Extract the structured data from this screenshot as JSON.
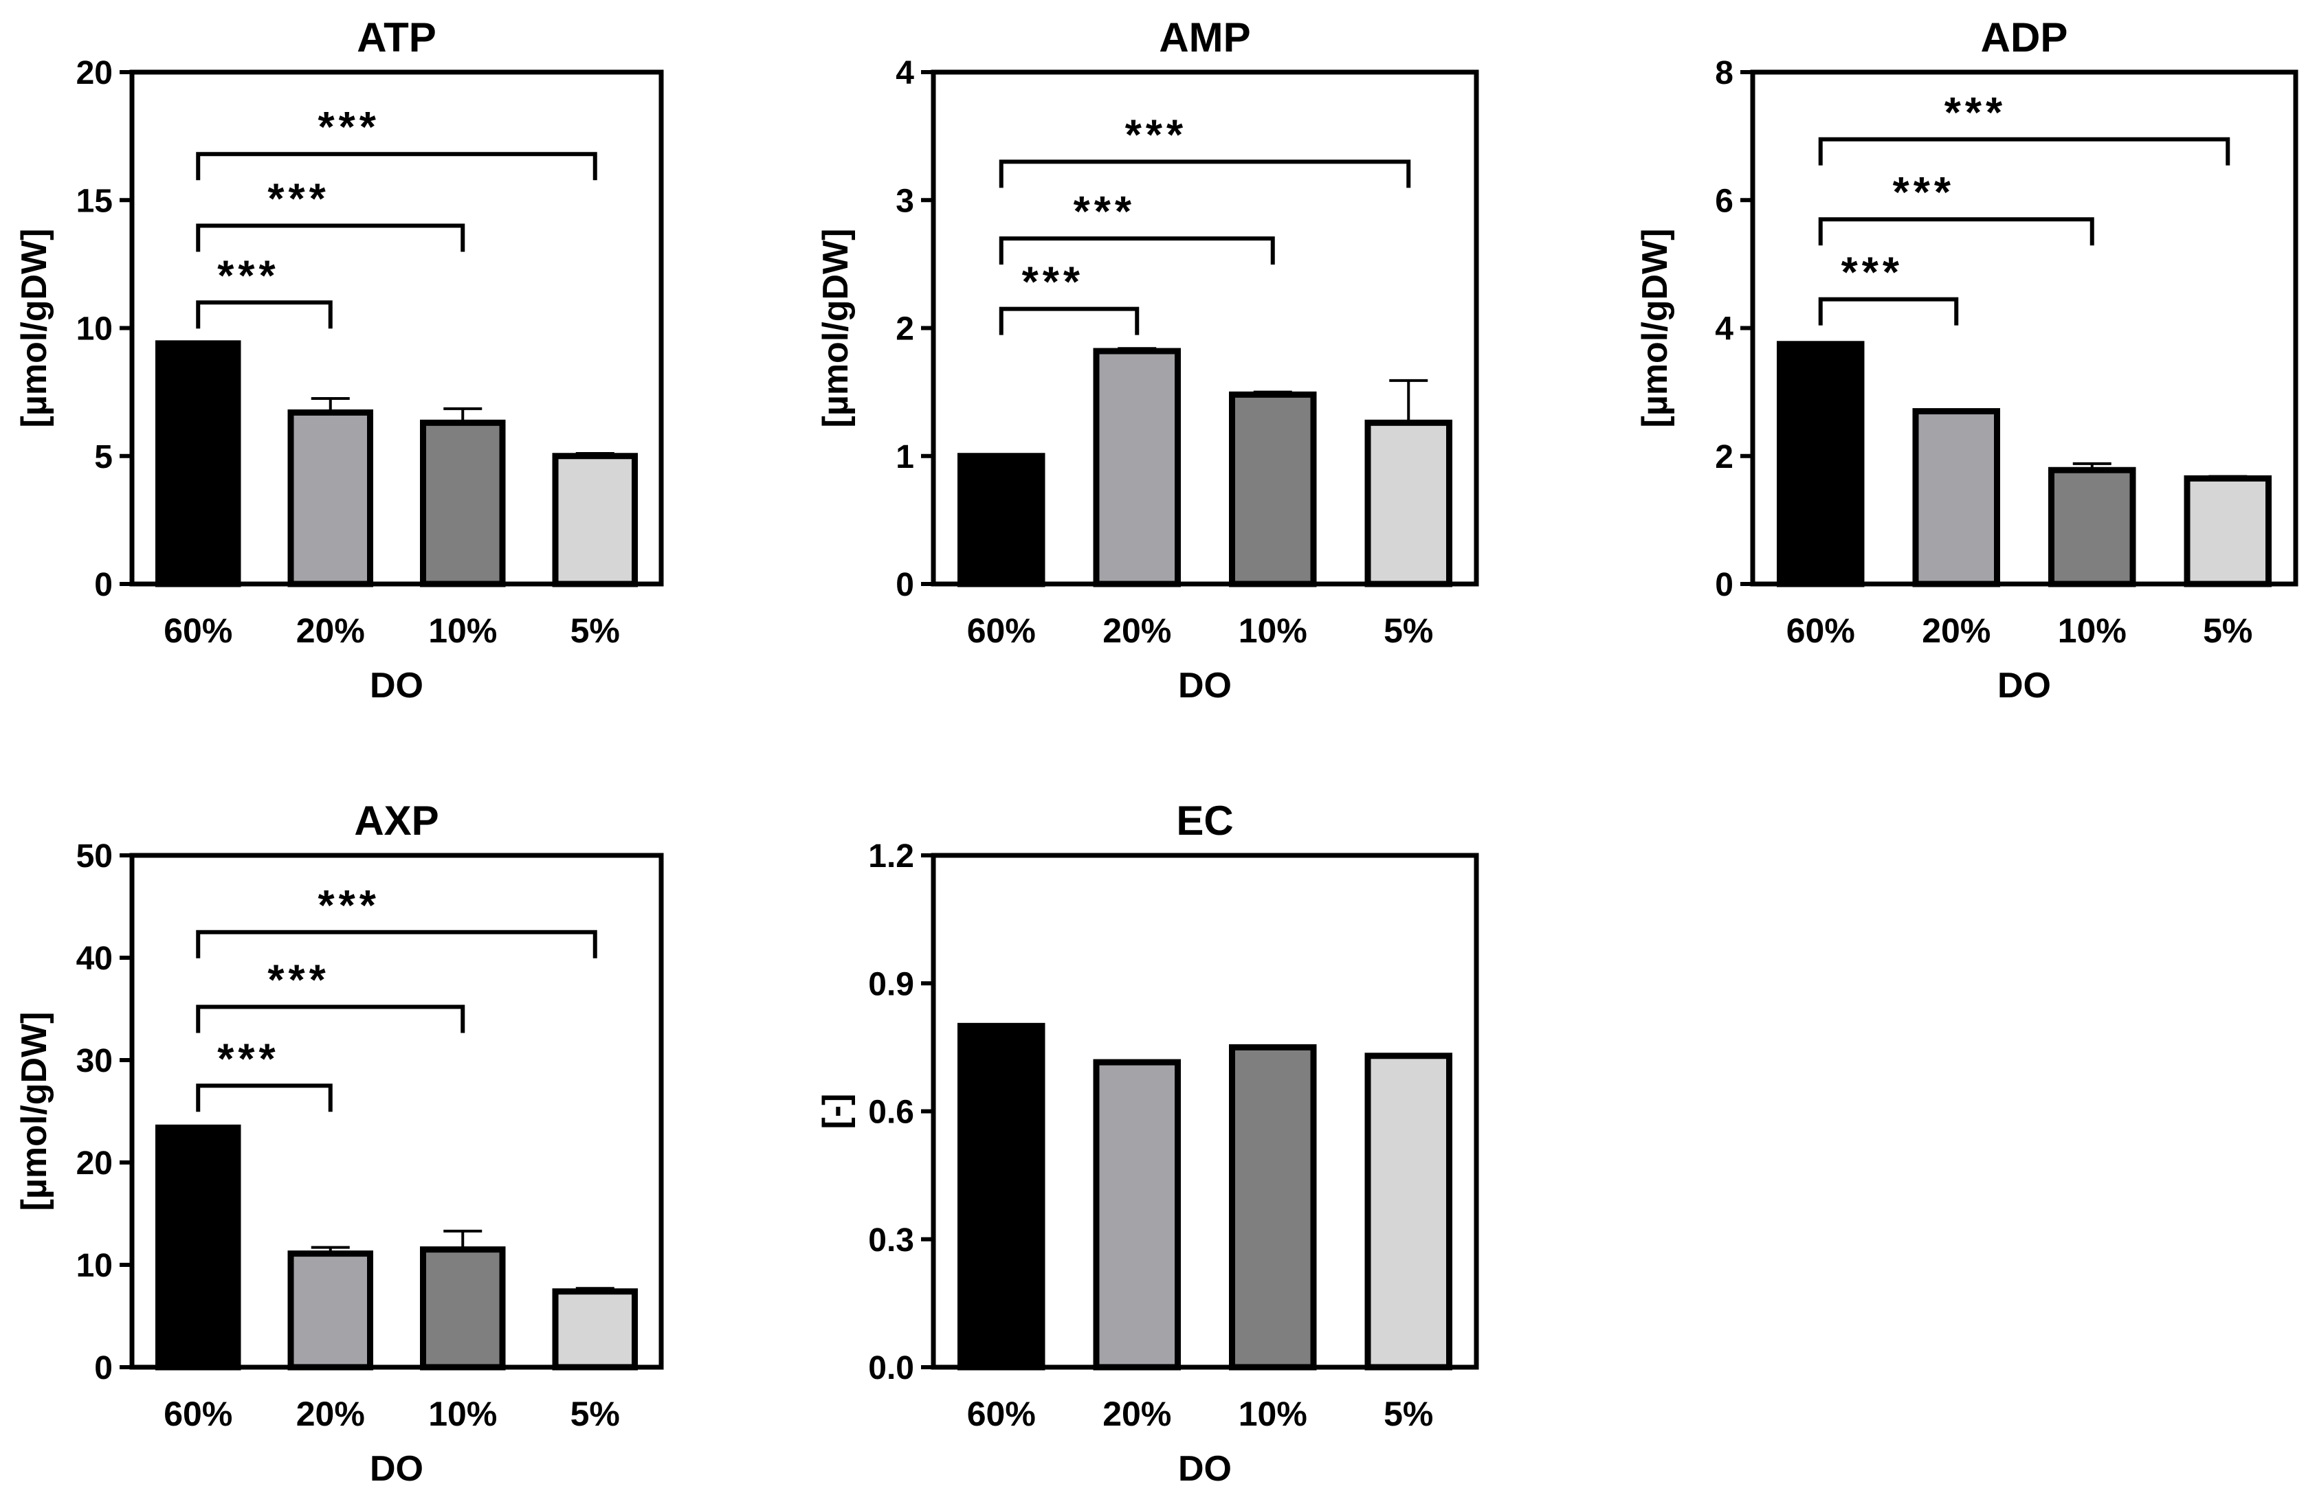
{
  "chart_data": [
    {
      "type": "bar",
      "title": "ATP",
      "xlabel": "DO",
      "ylabel": "[µmol/gDW]",
      "categories": [
        "60%",
        "20%",
        "10%",
        "5%"
      ],
      "values": [
        9.4,
        6.7,
        6.3,
        5.0
      ],
      "errors": [
        0,
        0.55,
        0.55,
        0.1
      ],
      "ylim": [
        0,
        20
      ],
      "yticks": [
        "0",
        "5",
        "10",
        "15",
        "20"
      ],
      "colors": [
        "#000000",
        "#a3a3a8",
        "#7f7f7f",
        "#d6d6d6"
      ],
      "significance": [
        {
          "from": 0,
          "to": 1,
          "label": "***",
          "level": 11
        },
        {
          "from": 0,
          "to": 2,
          "label": "***",
          "level": 14
        },
        {
          "from": 0,
          "to": 3,
          "label": "***",
          "level": 16.8
        }
      ]
    },
    {
      "type": "bar",
      "title": "AMP",
      "xlabel": "DO",
      "ylabel": "[µmol/gDW]",
      "categories": [
        "60%",
        "20%",
        "10%",
        "5%"
      ],
      "values": [
        1.0,
        1.82,
        1.48,
        1.26
      ],
      "errors": [
        0,
        0.02,
        0.02,
        0.33
      ],
      "ylim": [
        0,
        4
      ],
      "yticks": [
        "0",
        "1",
        "2",
        "3",
        "4"
      ],
      "colors": [
        "#000000",
        "#a3a3a8",
        "#7f7f7f",
        "#d6d6d6"
      ],
      "significance": [
        {
          "from": 0,
          "to": 1,
          "label": "***",
          "level": 2.15
        },
        {
          "from": 0,
          "to": 2,
          "label": "***",
          "level": 2.7
        },
        {
          "from": 0,
          "to": 3,
          "label": "***",
          "level": 3.3
        }
      ]
    },
    {
      "type": "bar",
      "title": "ADP",
      "xlabel": "DO",
      "ylabel": "[µmol/gDW]",
      "categories": [
        "60%",
        "20%",
        "10%",
        "5%"
      ],
      "values": [
        3.75,
        2.7,
        1.78,
        1.65
      ],
      "errors": [
        0,
        0.02,
        0.1,
        0.03
      ],
      "ylim": [
        0,
        8
      ],
      "yticks": [
        "0",
        "2",
        "4",
        "6",
        "8"
      ],
      "colors": [
        "#000000",
        "#a3a3a8",
        "#7f7f7f",
        "#d6d6d6"
      ],
      "significance": [
        {
          "from": 0,
          "to": 1,
          "label": "***",
          "level": 4.45
        },
        {
          "from": 0,
          "to": 2,
          "label": "***",
          "level": 5.7
        },
        {
          "from": 0,
          "to": 3,
          "label": "***",
          "level": 6.95
        }
      ]
    },
    {
      "type": "bar",
      "title": "AXP",
      "xlabel": "DO",
      "ylabel": "[µmol/gDW]",
      "categories": [
        "60%",
        "20%",
        "10%",
        "5%"
      ],
      "values": [
        23.4,
        11.1,
        11.5,
        7.4
      ],
      "errors": [
        0,
        0.6,
        1.8,
        0.3
      ],
      "ylim": [
        0,
        50
      ],
      "yticks": [
        "0",
        "10",
        "20",
        "30",
        "40",
        "50"
      ],
      "colors": [
        "#000000",
        "#a3a3a8",
        "#7f7f7f",
        "#d6d6d6"
      ],
      "significance": [
        {
          "from": 0,
          "to": 1,
          "label": "***",
          "level": 27.5
        },
        {
          "from": 0,
          "to": 2,
          "label": "***",
          "level": 35.2
        },
        {
          "from": 0,
          "to": 3,
          "label": "***",
          "level": 42.5
        }
      ]
    },
    {
      "type": "bar",
      "title": "EC",
      "xlabel": "DO",
      "ylabel": "[-]",
      "categories": [
        "60%",
        "20%",
        "10%",
        "5%"
      ],
      "values": [
        0.8,
        0.715,
        0.75,
        0.73
      ],
      "errors": [
        0,
        0,
        0,
        0
      ],
      "ylim": [
        0,
        1.2
      ],
      "yticks": [
        "0.0",
        "0.3",
        "0.6",
        "0.9",
        "1.2"
      ],
      "colors": [
        "#000000",
        "#a3a3a8",
        "#7f7f7f",
        "#d6d6d6"
      ],
      "significance": []
    }
  ]
}
